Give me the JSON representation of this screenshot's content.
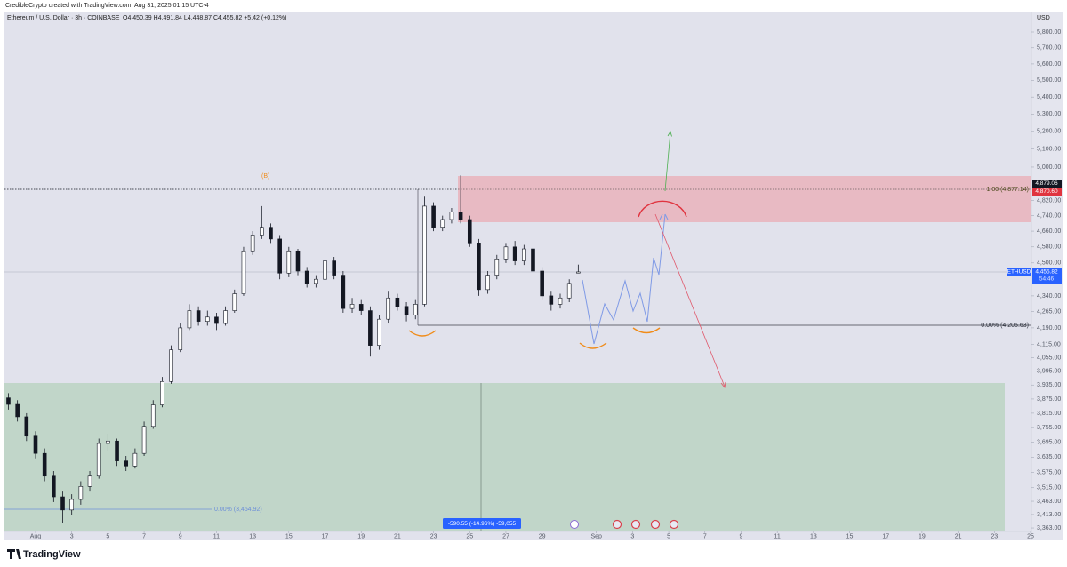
{
  "header": {
    "credit": "CredibleCrypto created with TradingView.com, Aug 31, 2025 01:15 UTC-4",
    "symbol": "Ethereum / U.S. Dollar · 3h · COINBASE",
    "ohlc": "O4,450.39  H4,491.84  L4,448.87  C4,455.82  +5.42 (+0.12%)"
  },
  "chart_data": {
    "type": "candlestick",
    "log_scale": true,
    "up_color": "#ffffff",
    "down_color": "#131722",
    "x": [
      -1.5,
      -1,
      -0.5,
      0,
      0.5,
      1,
      1.5,
      2,
      2.5,
      3,
      3.5,
      4,
      4.5,
      5,
      5.5,
      6,
      6.5,
      7,
      7.5,
      8,
      8.5,
      9,
      9.5,
      10,
      10.5,
      11,
      11.5,
      12,
      12.5,
      13,
      13.5,
      14,
      14.5,
      15,
      15.5,
      16,
      16.5,
      17,
      17.5,
      18,
      18.5,
      19,
      19.5,
      20,
      20.5,
      21,
      21.5,
      22,
      22.5,
      23,
      23.5,
      24,
      24.5,
      25,
      25.5,
      26,
      26.5,
      27,
      27.5,
      28,
      28.5,
      29,
      29.5,
      30
    ],
    "open": [
      3880,
      3852,
      3800,
      3720,
      3650,
      3560,
      3480,
      3430,
      3470,
      3520,
      3560,
      3690,
      3700,
      3620,
      3600,
      3650,
      3760,
      3850,
      3950,
      4090,
      4190,
      4270,
      4220,
      4240,
      4210,
      4270,
      4350,
      4560,
      4640,
      4680,
      4620,
      4450,
      4560,
      4460,
      4400,
      4420,
      4510,
      4440,
      4280,
      4300,
      4270,
      4110,
      4230,
      4330,
      4290,
      4250,
      4300,
      4790,
      4680,
      4720,
      4760,
      4720,
      4600,
      4370,
      4440,
      4520,
      4580,
      4510,
      4570,
      4460,
      4340,
      4300,
      4330,
      4450.39
    ],
    "high": [
      3900,
      3870,
      3815,
      3740,
      3670,
      3580,
      3500,
      3490,
      3540,
      3580,
      3710,
      3730,
      3710,
      3640,
      3670,
      3780,
      3870,
      3970,
      4110,
      4210,
      4300,
      4290,
      4270,
      4260,
      4290,
      4370,
      4580,
      4660,
      4790,
      4700,
      4640,
      4580,
      4570,
      4480,
      4440,
      4540,
      4530,
      4460,
      4330,
      4320,
      4290,
      4250,
      4360,
      4350,
      4310,
      4320,
      4840,
      4810,
      4740,
      4780,
      4955,
      4740,
      4620,
      4460,
      4540,
      4600,
      4610,
      4590,
      4590,
      4480,
      4360,
      4350,
      4420,
      4491.84
    ],
    "low": [
      3830,
      3780,
      3700,
      3630,
      3540,
      3460,
      3380,
      3410,
      3450,
      3500,
      3550,
      3660,
      3600,
      3580,
      3590,
      3640,
      3750,
      3840,
      3940,
      4080,
      4180,
      4200,
      4200,
      4180,
      4200,
      4260,
      4340,
      4540,
      4620,
      4600,
      4420,
      4430,
      4440,
      4380,
      4380,
      4400,
      4420,
      4260,
      4260,
      4250,
      4060,
      4090,
      4210,
      4270,
      4220,
      4230,
      4290,
      4660,
      4660,
      4700,
      4700,
      4580,
      4340,
      4350,
      4420,
      4500,
      4490,
      4490,
      4440,
      4320,
      4270,
      4280,
      4310,
      4448.87
    ],
    "close": [
      3852,
      3800,
      3720,
      3650,
      3560,
      3480,
      3430,
      3470,
      3520,
      3560,
      3690,
      3700,
      3620,
      3600,
      3650,
      3760,
      3850,
      3950,
      4090,
      4190,
      4270,
      4220,
      4240,
      4210,
      4270,
      4350,
      4560,
      4640,
      4680,
      4620,
      4450,
      4560,
      4460,
      4400,
      4420,
      4510,
      4440,
      4280,
      4300,
      4270,
      4110,
      4230,
      4330,
      4290,
      4250,
      4300,
      4790,
      4680,
      4720,
      4760,
      4720,
      4600,
      4370,
      4440,
      4520,
      4580,
      4510,
      4570,
      4460,
      4340,
      4300,
      4330,
      4400,
      4455.82
    ],
    "xlim": [
      -1.72,
      55.05
    ],
    "xticks": [
      {
        "value": 0,
        "label": "Aug"
      },
      {
        "value": 2,
        "label": "3"
      },
      {
        "value": 4,
        "label": "5"
      },
      {
        "value": 6,
        "label": "7"
      },
      {
        "value": 8,
        "label": "9"
      },
      {
        "value": 10,
        "label": "11"
      },
      {
        "value": 12,
        "label": "13"
      },
      {
        "value": 14,
        "label": "15"
      },
      {
        "value": 16,
        "label": "17"
      },
      {
        "value": 18,
        "label": "19"
      },
      {
        "value": 20,
        "label": "21"
      },
      {
        "value": 22,
        "label": "23"
      },
      {
        "value": 24,
        "label": "25"
      },
      {
        "value": 26,
        "label": "27"
      },
      {
        "value": 28,
        "label": "29"
      },
      {
        "value": 31,
        "label": "Sep"
      },
      {
        "value": 33,
        "label": "3"
      },
      {
        "value": 35,
        "label": "5"
      },
      {
        "value": 37,
        "label": "7"
      },
      {
        "value": 39,
        "label": "9"
      },
      {
        "value": 41,
        "label": "11"
      },
      {
        "value": 43,
        "label": "13"
      },
      {
        "value": 45,
        "label": "15"
      },
      {
        "value": 47,
        "label": "17"
      },
      {
        "value": 49,
        "label": "19"
      },
      {
        "value": 51,
        "label": "21"
      },
      {
        "value": 53,
        "label": "23"
      },
      {
        "value": 55,
        "label": "25"
      }
    ],
    "ylim": [
      3350,
      5926
    ],
    "yticks": [
      {
        "value": 5800,
        "label": "5,800.00"
      },
      {
        "value": 5700,
        "label": "5,700.00"
      },
      {
        "value": 5600,
        "label": "5,600.00"
      },
      {
        "value": 5500,
        "label": "5,500.00"
      },
      {
        "value": 5400,
        "label": "5,400.00"
      },
      {
        "value": 5300,
        "label": "5,300.00"
      },
      {
        "value": 5200,
        "label": "5,200.00"
      },
      {
        "value": 5100,
        "label": "5,100.00"
      },
      {
        "value": 5000,
        "label": "5,000.00"
      },
      {
        "value": 4820,
        "label": "4,820.00"
      },
      {
        "value": 4740,
        "label": "4,740.00"
      },
      {
        "value": 4660,
        "label": "4,660.00"
      },
      {
        "value": 4580,
        "label": "4,580.00"
      },
      {
        "value": 4500,
        "label": "4,500.00"
      },
      {
        "value": 4340,
        "label": "4,340.00"
      },
      {
        "value": 4265,
        "label": "4,265.00"
      },
      {
        "value": 4190,
        "label": "4,190.00"
      },
      {
        "value": 4115,
        "label": "4,115.00"
      },
      {
        "value": 4055,
        "label": "4,055.00"
      },
      {
        "value": 3995,
        "label": "3,995.00"
      },
      {
        "value": 3935,
        "label": "3,935.00"
      },
      {
        "value": 3875,
        "label": "3,875.00"
      },
      {
        "value": 3815,
        "label": "3,815.00"
      },
      {
        "value": 3755,
        "label": "3,755.00"
      },
      {
        "value": 3695,
        "label": "3,695.00"
      },
      {
        "value": 3635,
        "label": "3,635.00"
      },
      {
        "value": 3575,
        "label": "3,575.00"
      },
      {
        "value": 3515,
        "label": "3,515.00"
      },
      {
        "value": 3463,
        "label": "3,463.00"
      },
      {
        "value": 3413,
        "label": "3,413.00"
      },
      {
        "value": 3363,
        "label": "3,363.00"
      }
    ],
    "y_axis_unit": "USD"
  },
  "annotations": {
    "wave_label": "(B)",
    "fib_top": "1.00 (4,877.14)",
    "fib_zero": "0.00% (4,205.63)",
    "fib_low": "0.00% (3,454.92)",
    "range_label": "-590.55 (-14.96%) -59,055"
  },
  "price_labels": {
    "high_level": "4,879.06",
    "zone_level": "4,870.60",
    "symbol": "ETHUSD",
    "last_price": "4,455.82",
    "countdown": "54:46"
  },
  "footer": {
    "brand": "TradingView"
  }
}
